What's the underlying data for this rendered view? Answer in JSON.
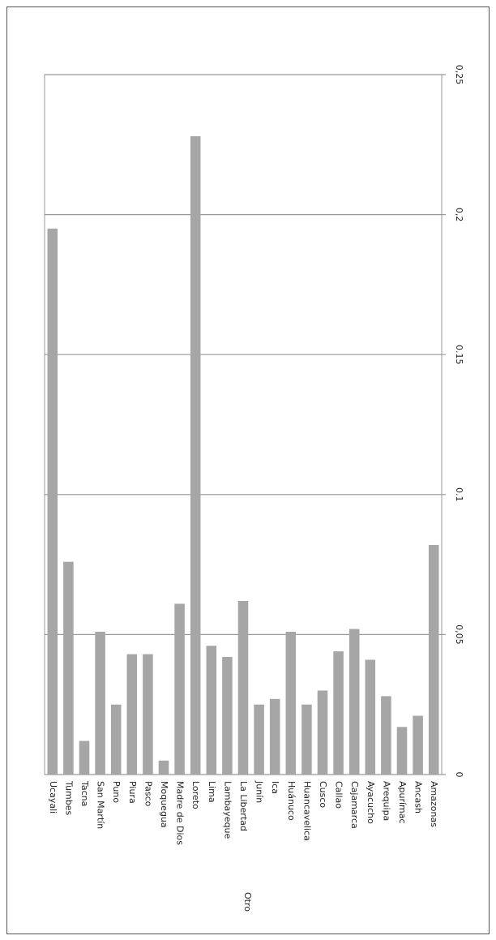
{
  "chart_data": {
    "type": "bar",
    "x_label": "Otro",
    "categories": [
      "Ucayali",
      "Tumbes",
      "Tacna",
      "San Martín",
      "Puno",
      "Piura",
      "Pasco",
      "Moquegua",
      "Madre de Dios",
      "Loreto",
      "Lima",
      "Lambayeque",
      "La Libertad",
      "Junín",
      "Ica",
      "Huánuco",
      "Huancavelica",
      "Cusco",
      "Callao",
      "Cajamarca",
      "Ayacucho",
      "Arequipa",
      "Apurímac",
      "Ancash",
      "Amazonas"
    ],
    "values": [
      0.195,
      0.076,
      0.012,
      0.051,
      0.025,
      0.043,
      0.043,
      0.005,
      0.061,
      0.228,
      0.046,
      0.042,
      0.062,
      0.025,
      0.027,
      0.051,
      0.025,
      0.03,
      0.044,
      0.052,
      0.041,
      0.028,
      0.017,
      0.021,
      0.082
    ],
    "color": "#a6a6a6",
    "ylim": [
      0,
      0.25
    ],
    "yticks": [
      0,
      {
        "value": 0.05,
        "label": "0,05"
      },
      0.1,
      0.15,
      {
        "value": 0.2,
        "label": "0,2"
      },
      {
        "value": 0.25,
        "label": "0,25"
      }
    ],
    "grid": true
  }
}
